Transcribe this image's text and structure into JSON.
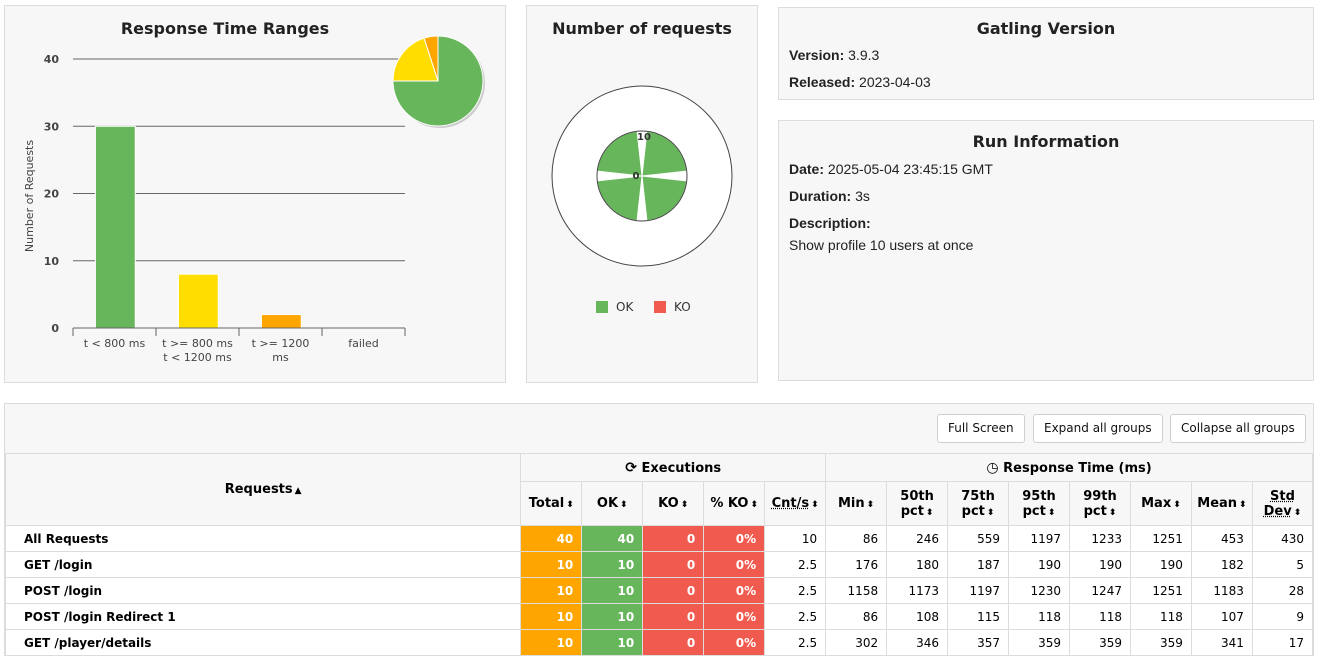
{
  "ranges_panel": {
    "title": "Response Time Ranges"
  },
  "chart_data": [
    {
      "type": "bar",
      "title": "Response Time Ranges",
      "ylabel": "Number of Requests",
      "categories": [
        "t < 800 ms",
        "t >= 800 ms t < 1200 ms",
        "t >= 1200 ms",
        "failed"
      ],
      "values": [
        30,
        8,
        2,
        0
      ],
      "colors": [
        "#68b65c",
        "#ffdd00",
        "#ffa500",
        "#f15b4f"
      ],
      "yticks": [
        0,
        10,
        20,
        30,
        40
      ],
      "ylim": [
        0,
        40
      ]
    },
    {
      "type": "pie",
      "values": [
        30,
        8,
        2,
        0
      ],
      "colors": [
        "#68b65c",
        "#ffdd00",
        "#ffa500",
        "#f15b4f"
      ]
    },
    {
      "type": "polar",
      "title": "Number of requests",
      "radial_ticks": [
        "10",
        "0"
      ],
      "series": [
        {
          "name": "OK",
          "color": "#68b65c"
        },
        {
          "name": "KO",
          "color": "#f15b4f"
        }
      ],
      "values": [
        10,
        10,
        10,
        10
      ]
    }
  ],
  "requests_panel": {
    "title": "Number of requests",
    "legend": [
      {
        "label": "OK",
        "color": "#68b65c"
      },
      {
        "label": "KO",
        "color": "#f15b4f"
      }
    ]
  },
  "version_panel": {
    "title": "Gatling Version",
    "version_label": "Version:",
    "version_value": "3.9.3",
    "released_label": "Released:",
    "released_value": "2023-04-03"
  },
  "run_panel": {
    "title": "Run Information",
    "date_label": "Date:",
    "date_value": "2025-05-04 23:45:15 GMT",
    "duration_label": "Duration:",
    "duration_value": "3s",
    "description_label": "Description:",
    "description_value": "Show profile 10 users at once"
  },
  "toolbar": {
    "full_screen": "Full Screen",
    "expand_all": "Expand all groups",
    "collapse_all": "Collapse all groups"
  },
  "table": {
    "requests_header": "Requests",
    "executions_header": "Executions",
    "response_time_header": "Response Time (ms)",
    "columns": [
      "Total",
      "OK",
      "KO",
      "% KO",
      "Cnt/s",
      "Min",
      "50th pct",
      "75th pct",
      "95th pct",
      "99th pct",
      "Max",
      "Mean",
      "Std Dev"
    ],
    "rows": [
      {
        "name": "All Requests",
        "values": [
          "40",
          "40",
          "0",
          "0%",
          "10",
          "86",
          "246",
          "559",
          "1197",
          "1233",
          "1251",
          "453",
          "430"
        ]
      },
      {
        "name": "GET /login",
        "values": [
          "10",
          "10",
          "0",
          "0%",
          "2.5",
          "176",
          "180",
          "187",
          "190",
          "190",
          "190",
          "182",
          "5"
        ]
      },
      {
        "name": "POST /login",
        "values": [
          "10",
          "10",
          "0",
          "0%",
          "2.5",
          "1158",
          "1173",
          "1197",
          "1230",
          "1247",
          "1251",
          "1183",
          "28"
        ]
      },
      {
        "name": "POST /login Redirect 1",
        "values": [
          "10",
          "10",
          "0",
          "0%",
          "2.5",
          "86",
          "108",
          "115",
          "118",
          "118",
          "118",
          "107",
          "9"
        ]
      },
      {
        "name": "GET /player/details",
        "values": [
          "10",
          "10",
          "0",
          "0%",
          "2.5",
          "302",
          "346",
          "357",
          "359",
          "359",
          "359",
          "341",
          "17"
        ]
      }
    ]
  }
}
